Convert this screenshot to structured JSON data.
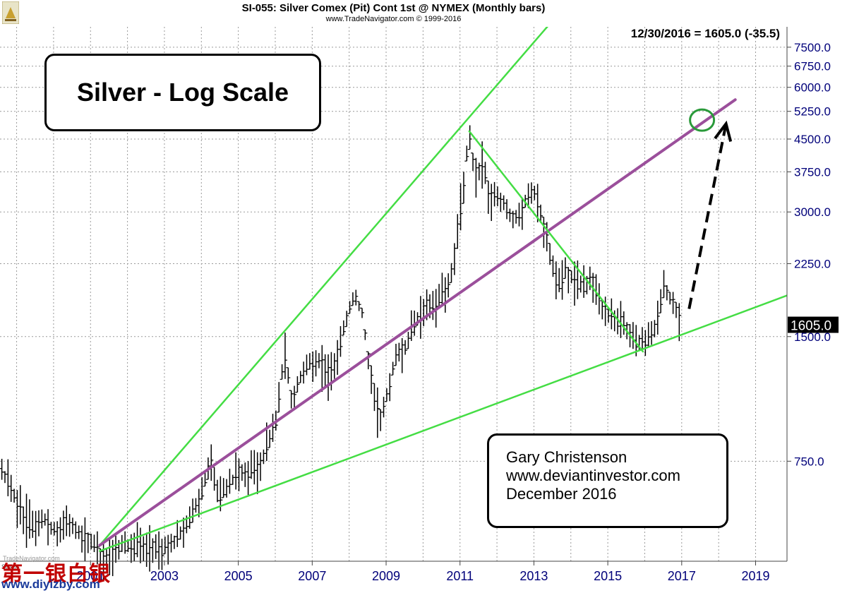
{
  "header": {
    "title": "SI-055:  Silver Comex (Pit) Cont 1st @ NYMEX  (Monthly bars)",
    "copyright": "www.TradeNavigator.com © 1999-2016",
    "readout": "12/30/2016 = 1605.0 (-35.5)"
  },
  "title_box": "Silver - Log Scale",
  "author_box": [
    "Gary Christenson",
    "www.deviantinvestor.com",
    "December 2016"
  ],
  "watermark": {
    "tn": "TradeNavigator.com",
    "sym": "Silver",
    "cn": "第一银白银",
    "site": "www.diyizby.com"
  },
  "chart_data": {
    "type": "line",
    "series_style": "monthly OHLC bars",
    "scale": "log",
    "grid": true,
    "xlim": [
      1998.6,
      2019.9
    ],
    "ylim": [
      430,
      8400
    ],
    "x_ticks": [
      2001,
      2003,
      2005,
      2007,
      2009,
      2011,
      2013,
      2015,
      2017,
      2019
    ],
    "y_ticks": [
      750,
      1500,
      2250,
      3000,
      3750,
      4500,
      5250,
      6000,
      6750,
      7500
    ],
    "last_price_label": "1605.0",
    "last_price": 1605,
    "colors": {
      "bars": "#000000",
      "channel_lines": "#44dd44",
      "mid_trend": "#9b4f9b",
      "target_circle": "#2a9a3a",
      "arrow": "#000000",
      "grid": "#9a9a9a",
      "axis_text": "#00007a"
    },
    "path_points": [
      [
        1998.65,
        720
      ],
      [
        1998.9,
        650
      ],
      [
        1999.2,
        560
      ],
      [
        1999.5,
        520
      ],
      [
        1999.8,
        540
      ],
      [
        2000.1,
        510
      ],
      [
        2000.4,
        540
      ],
      [
        2000.7,
        510
      ],
      [
        2000.95,
        490
      ],
      [
        2001.2,
        460
      ],
      [
        2001.45,
        440
      ],
      [
        2001.7,
        455
      ],
      [
        2001.95,
        470
      ],
      [
        2002.3,
        465
      ],
      [
        2002.6,
        470
      ],
      [
        2002.95,
        455
      ],
      [
        2003.2,
        470
      ],
      [
        2003.45,
        500
      ],
      [
        2003.7,
        540
      ],
      [
        2003.95,
        590
      ],
      [
        2004.15,
        680
      ],
      [
        2004.3,
        780
      ],
      [
        2004.45,
        620
      ],
      [
        2004.7,
        640
      ],
      [
        2005.0,
        700
      ],
      [
        2005.3,
        710
      ],
      [
        2005.6,
        720
      ],
      [
        2005.85,
        830
      ],
      [
        2006.1,
        960
      ],
      [
        2006.3,
        1380
      ],
      [
        2006.5,
        1050
      ],
      [
        2006.7,
        1180
      ],
      [
        2006.95,
        1280
      ],
      [
        2007.2,
        1330
      ],
      [
        2007.5,
        1220
      ],
      [
        2007.75,
        1380
      ],
      [
        2008.0,
        1700
      ],
      [
        2008.2,
        1880
      ],
      [
        2008.4,
        1720
      ],
      [
        2008.6,
        1250
      ],
      [
        2008.75,
        1050
      ],
      [
        2008.9,
        950
      ],
      [
        2009.1,
        1100
      ],
      [
        2009.3,
        1350
      ],
      [
        2009.55,
        1400
      ],
      [
        2009.8,
        1600
      ],
      [
        2010.1,
        1750
      ],
      [
        2010.4,
        1820
      ],
      [
        2010.65,
        1900
      ],
      [
        2010.85,
        2200
      ],
      [
        2011.0,
        2800
      ],
      [
        2011.15,
        3500
      ],
      [
        2011.3,
        4700
      ],
      [
        2011.45,
        3600
      ],
      [
        2011.65,
        4000
      ],
      [
        2011.85,
        3200
      ],
      [
        2012.05,
        3300
      ],
      [
        2012.25,
        3100
      ],
      [
        2012.5,
        2900
      ],
      [
        2012.7,
        3000
      ],
      [
        2012.9,
        3300
      ],
      [
        2013.05,
        3350
      ],
      [
        2013.2,
        3100
      ],
      [
        2013.35,
        2700
      ],
      [
        2013.5,
        2300
      ],
      [
        2013.7,
        2000
      ],
      [
        2013.9,
        2150
      ],
      [
        2014.1,
        2050
      ],
      [
        2014.35,
        2000
      ],
      [
        2014.6,
        2050
      ],
      [
        2014.8,
        1850
      ],
      [
        2015.0,
        1700
      ],
      [
        2015.25,
        1650
      ],
      [
        2015.5,
        1600
      ],
      [
        2015.7,
        1500
      ],
      [
        2015.95,
        1450
      ],
      [
        2016.15,
        1500
      ],
      [
        2016.35,
        1600
      ],
      [
        2016.55,
        1950
      ],
      [
        2016.75,
        1850
      ],
      [
        2016.95,
        1740
      ],
      [
        2017.0,
        1605
      ]
    ],
    "trendlines": [
      {
        "name": "channel_upper",
        "from": [
          2001.3,
          470
        ],
        "to": [
          2013.7,
          9000
        ]
      },
      {
        "name": "channel_lower",
        "from": [
          2001.3,
          455
        ],
        "to": [
          2019.9,
          1885
        ]
      },
      {
        "name": "mid_trend",
        "from": [
          2001.3,
          470
        ],
        "to": [
          2018.5,
          5600
        ]
      },
      {
        "name": "decline",
        "from": [
          2011.3,
          4700
        ],
        "to": [
          2016.0,
          1380
        ]
      }
    ],
    "target_circle": {
      "x": 2017.6,
      "y": 5000
    },
    "projection_arrow": {
      "from": [
        2017.25,
        1750
      ],
      "to": [
        2018.25,
        4900
      ]
    }
  }
}
